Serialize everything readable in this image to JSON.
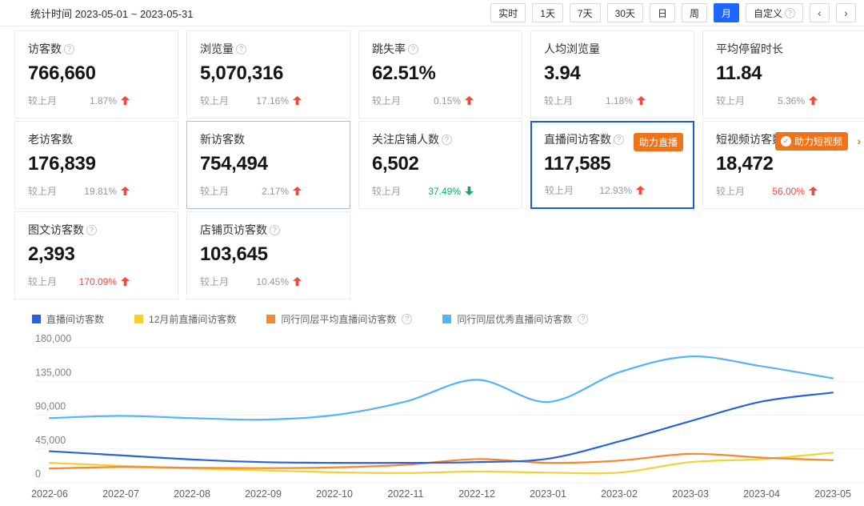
{
  "toolbar": {
    "stat_label": "统计时间",
    "stat_range": "2023-05-01 ~ 2023-05-31",
    "buttons": [
      "实时",
      "1天",
      "7天",
      "30天",
      "日",
      "周",
      "月",
      "自定义"
    ],
    "active_button": "月",
    "custom_button_has_help": true,
    "prev": "‹",
    "next": "›"
  },
  "cards": [
    {
      "title": "访客数",
      "help": true,
      "value": "766,660",
      "compare": "较上月",
      "pct": "1.87%",
      "trend": "up",
      "pct_color": "gray"
    },
    {
      "title": "浏览量",
      "help": true,
      "value": "5,070,316",
      "compare": "较上月",
      "pct": "17.16%",
      "trend": "up",
      "pct_color": "gray"
    },
    {
      "title": "跳失率",
      "help": true,
      "value": "62.51%",
      "compare": "较上月",
      "pct": "0.15%",
      "trend": "up",
      "pct_color": "gray"
    },
    {
      "title": "人均浏览量",
      "help": false,
      "value": "3.94",
      "compare": "较上月",
      "pct": "1.18%",
      "trend": "up",
      "pct_color": "gray"
    },
    {
      "title": "平均停留时长",
      "help": false,
      "value": "11.84",
      "compare": "较上月",
      "pct": "5.36%",
      "trend": "up",
      "pct_color": "gray"
    },
    {
      "title": "老访客数",
      "help": false,
      "value": "176,839",
      "compare": "较上月",
      "pct": "19.81%",
      "trend": "up",
      "pct_color": "gray"
    },
    {
      "title": "新访客数",
      "help": false,
      "value": "754,494",
      "compare": "较上月",
      "pct": "2.17%",
      "trend": "up",
      "pct_color": "gray",
      "highlight": "soft"
    },
    {
      "title": "关注店铺人数",
      "help": true,
      "value": "6,502",
      "compare": "较上月",
      "pct": "37.49%",
      "trend": "down",
      "pct_color": "green"
    },
    {
      "title": "直播间访客数",
      "help": true,
      "value": "117,585",
      "compare": "较上月",
      "pct": "12.93%",
      "trend": "up",
      "pct_color": "gray",
      "selected": true,
      "badge": {
        "text": "助力直播"
      }
    },
    {
      "title": "短视频访客数",
      "help": true,
      "value": "18,472",
      "compare": "较上月",
      "pct": "56.00%",
      "trend": "up",
      "pct_color": "red",
      "badge": {
        "text": "助力短视频",
        "shield": true,
        "chevron": "›"
      }
    },
    {
      "title": "图文访客数",
      "help": true,
      "value": "2,393",
      "compare": "较上月",
      "pct": "170.09%",
      "trend": "up",
      "pct_color": "red"
    },
    {
      "title": "店铺页访客数",
      "help": true,
      "value": "103,645",
      "compare": "较上月",
      "pct": "10.45%",
      "trend": "up",
      "pct_color": "gray"
    }
  ],
  "chart_data": {
    "type": "line",
    "x": [
      "2022-06",
      "2022-07",
      "2022-08",
      "2022-09",
      "2022-10",
      "2022-11",
      "2022-12",
      "2023-01",
      "2023-02",
      "2023-03",
      "2023-04",
      "2023-05"
    ],
    "series": [
      {
        "name": "直播间访客数",
        "color": "#2a62d9",
        "help": false,
        "values": [
          42000,
          36500,
          31000,
          27500,
          26500,
          26500,
          27500,
          32000,
          55000,
          82000,
          108000,
          120000
        ]
      },
      {
        "name": "12月前直播间访客数",
        "color": "#f6cf30",
        "help": false,
        "values": [
          26500,
          22500,
          19000,
          16500,
          14000,
          13000,
          15000,
          13500,
          13500,
          27500,
          31500,
          40000
        ]
      },
      {
        "name": "同行同层平均直播间访客数",
        "color": "#f8862d",
        "help": true,
        "values": [
          19000,
          21000,
          20000,
          19500,
          20500,
          24000,
          31500,
          26500,
          29500,
          38500,
          33500,
          30000
        ]
      },
      {
        "name": "同行同层优秀直播间访客数",
        "color": "#55b4f5",
        "help": true,
        "values": [
          86000,
          89000,
          86000,
          84000,
          90000,
          108000,
          137000,
          107500,
          147000,
          168000,
          155000,
          139000
        ]
      }
    ],
    "ylim": [
      0,
      180000
    ],
    "yticks": [
      0,
      45000,
      90000,
      135000,
      180000
    ],
    "grid": true,
    "legend_position": "top"
  },
  "colors": {
    "accent_blue": "#1f66ff",
    "selected_border": "#1a5dd6",
    "soft_border": "#9dc0f7",
    "badge_orange": "#ef7318",
    "trend_red": "#f4483a",
    "trend_green": "#0eaf62",
    "gridline": "#eef1f5"
  }
}
